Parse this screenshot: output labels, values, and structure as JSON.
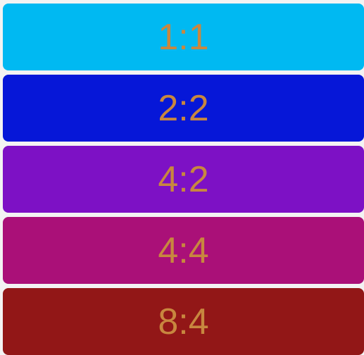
{
  "options": [
    {
      "label": "1:1",
      "color": "#00b9f2"
    },
    {
      "label": "2:2",
      "color": "#0617d8"
    },
    {
      "label": "4:2",
      "color": "#7d11c5"
    },
    {
      "label": "4:4",
      "color": "#aa1078"
    },
    {
      "label": "8:4",
      "color": "#921717"
    }
  ],
  "label_color": "#c8873f"
}
